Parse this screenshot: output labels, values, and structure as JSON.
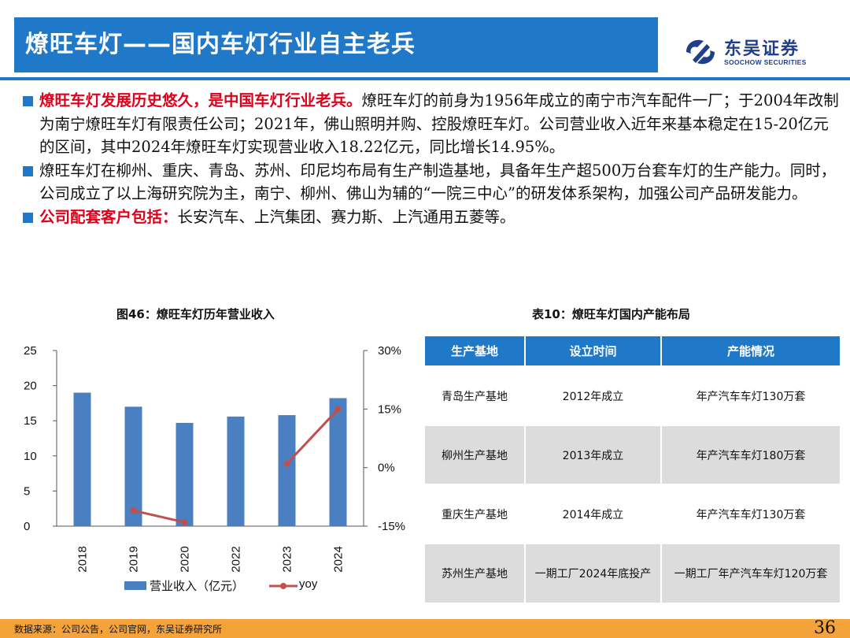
{
  "header": {
    "title": "燎旺车灯——国内车灯行业自主老兵",
    "logo_cn": "东吴证券",
    "logo_en": "SOOCHOW SECURITIES"
  },
  "bullets": [
    {
      "highlight": "燎旺车灯发展历史悠久，是中国车灯行业老兵。",
      "text": "燎旺车灯的前身为1956年成立的南宁市汽车配件一厂；于2004年改制为南宁燎旺车灯有限责任公司；2021年，佛山照明并购、控股燎旺车灯。公司营业收入近年来基本稳定在15-20亿元的区间，其中2024年燎旺车灯实现营业收入18.22亿元，同比增长14.95%。"
    },
    {
      "highlight": "",
      "text": "燎旺车灯在柳州、重庆、青岛、苏州、印尼均布局有生产制造基地，具备年生产超500万台套车灯的生产能力。同时，公司成立了以上海研究院为主，南宁、柳州、佛山为辅的“一院三中心”的研发体系架构，加强公司产品研发能力。"
    },
    {
      "highlight": "公司配套客户包括：",
      "text": "长安汽车、上汽集团、赛力斯、上汽通用五菱等。"
    }
  ],
  "chart_caption": "图46：燎旺车灯历年营业收入",
  "chart_data": {
    "type": "bar",
    "categories": [
      "2018",
      "2019",
      "2020",
      "2022",
      "2023",
      "2024"
    ],
    "series": [
      {
        "name": "营业收入（亿元）",
        "type": "bar",
        "axis": "left",
        "color": "#4a7fc1",
        "values": [
          19.0,
          17.0,
          14.7,
          15.6,
          15.8,
          18.22
        ]
      },
      {
        "name": "yoy",
        "type": "line",
        "axis": "right",
        "color": "#c0504d",
        "values": [
          null,
          -11.0,
          -14.0,
          null,
          1.0,
          14.95
        ]
      }
    ],
    "y_left": {
      "ylim": [
        0,
        25
      ],
      "ticks": [
        "0",
        "5",
        "10",
        "15",
        "20",
        "25"
      ]
    },
    "y_right": {
      "ylim": [
        -15,
        30
      ],
      "ticks": [
        "-15%",
        "0%",
        "15%",
        "30%"
      ]
    },
    "grid": false,
    "legend_position": "bottom"
  },
  "table_caption": "表10：燎旺车灯国内产能布局",
  "table": {
    "headers": [
      "生产基地",
      "设立时间",
      "产能情况"
    ],
    "rows": [
      [
        "青岛生产基地",
        "2012年成立",
        "年产汽车车灯130万套"
      ],
      [
        "柳州生产基地",
        "2013年成立",
        "年产汽车车灯180万套"
      ],
      [
        "重庆生产基地",
        "2014年成立",
        "年产汽车车灯130万套"
      ],
      [
        "苏州生产基地",
        "一期工厂2024年底投产",
        "一期工厂年产汽车车灯120万套"
      ]
    ]
  },
  "footer": {
    "source": "数据来源：公司公告，公司官网，东吴证券研究所",
    "page": "36"
  },
  "colors": {
    "brand_blue": "#1f78c8",
    "highlight_red": "#e0001b",
    "footer_orange": "#f4a33a"
  }
}
